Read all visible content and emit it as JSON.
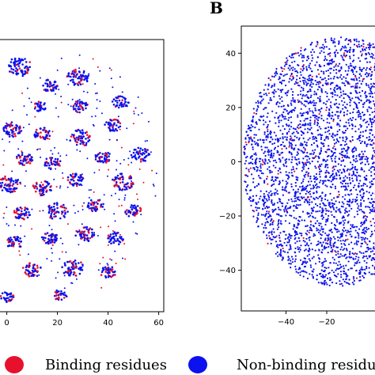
{
  "colors": {
    "binding": "#e8112d",
    "non_binding": "#0b12ee",
    "background": "#ffffff",
    "axes": "#000000"
  },
  "legend": {
    "placement": "bottom",
    "items": [
      {
        "label": "Binding residues",
        "color": "#e8112d"
      },
      {
        "label": "Non-binding residue",
        "color": "#0b12ee"
      }
    ]
  },
  "chart_data": [
    {
      "type": "scatter",
      "panel_letter": "",
      "title": "",
      "xlabel": "",
      "ylabel": "",
      "grid": false,
      "xlim": [
        -3,
        62
      ],
      "ylim": [
        -65,
        65
      ],
      "x_ticks": [
        0,
        20,
        40,
        60
      ],
      "x_tick_labels": [
        "0",
        "20",
        "40",
        "60"
      ],
      "y_ticks": [],
      "y_tick_labels": [],
      "series": [
        {
          "name": "Binding residues",
          "color": "#e8112d",
          "values_description": ""
        },
        {
          "name": "Non-binding residue",
          "color": "#0b12ee"
        }
      ],
      "clusters": [
        {
          "x": 5,
          "y": 52,
          "r": 4.5,
          "n": 70,
          "binding_share": 0.15
        },
        {
          "x": 17,
          "y": 43,
          "r": 3,
          "n": 40,
          "binding_share": 0.2
        },
        {
          "x": 28,
          "y": 47,
          "r": 4,
          "n": 60,
          "binding_share": 0.15
        },
        {
          "x": 45,
          "y": 35,
          "r": 3,
          "n": 40,
          "binding_share": 0.2
        },
        {
          "x": 13,
          "y": 33,
          "r": 2.5,
          "n": 30,
          "binding_share": 0.2
        },
        {
          "x": 29,
          "y": 33,
          "r": 3,
          "n": 40,
          "binding_share": 0.2
        },
        {
          "x": 2,
          "y": 22,
          "r": 3.5,
          "n": 50,
          "binding_share": 0.3
        },
        {
          "x": 14,
          "y": 20,
          "r": 3,
          "n": 45,
          "binding_share": 0.3
        },
        {
          "x": 29,
          "y": 18,
          "r": 4,
          "n": 55,
          "binding_share": 0.2
        },
        {
          "x": 42,
          "y": 24,
          "r": 3,
          "n": 40,
          "binding_share": 0.2
        },
        {
          "x": 53,
          "y": 10,
          "r": 3.5,
          "n": 50,
          "binding_share": 0.15
        },
        {
          "x": 7,
          "y": 8,
          "r": 3,
          "n": 45,
          "binding_share": 0.35
        },
        {
          "x": 18,
          "y": 6,
          "r": 3,
          "n": 40,
          "binding_share": 0.3
        },
        {
          "x": 38,
          "y": 9,
          "r": 3,
          "n": 45,
          "binding_share": 0.3
        },
        {
          "x": 1,
          "y": -4,
          "r": 4,
          "n": 60,
          "binding_share": 0.35
        },
        {
          "x": 14,
          "y": -6,
          "r": 3.5,
          "n": 55,
          "binding_share": 0.4
        },
        {
          "x": 27,
          "y": -2,
          "r": 3,
          "n": 45,
          "binding_share": 0.3
        },
        {
          "x": 46,
          "y": -3,
          "r": 4,
          "n": 60,
          "binding_share": 0.3
        },
        {
          "x": 6,
          "y": -18,
          "r": 3,
          "n": 45,
          "binding_share": 0.35
        },
        {
          "x": 20,
          "y": -17,
          "r": 4,
          "n": 55,
          "binding_share": 0.35
        },
        {
          "x": 35,
          "y": -14,
          "r": 3,
          "n": 40,
          "binding_share": 0.3
        },
        {
          "x": 50,
          "y": -17,
          "r": 3,
          "n": 40,
          "binding_share": 0.2
        },
        {
          "x": 3,
          "y": -32,
          "r": 3,
          "n": 45,
          "binding_share": 0.3
        },
        {
          "x": 17,
          "y": -30,
          "r": 3,
          "n": 45,
          "binding_share": 0.3
        },
        {
          "x": 31,
          "y": -28,
          "r": 3.5,
          "n": 50,
          "binding_share": 0.3
        },
        {
          "x": 43,
          "y": -30,
          "r": 3,
          "n": 40,
          "binding_share": 0.2
        },
        {
          "x": 10,
          "y": -45,
          "r": 3.5,
          "n": 50,
          "binding_share": 0.3
        },
        {
          "x": 26,
          "y": -44,
          "r": 4,
          "n": 60,
          "binding_share": 0.25
        },
        {
          "x": 40,
          "y": -46,
          "r": 3,
          "n": 40,
          "binding_share": 0.25
        },
        {
          "x": 0,
          "y": -58,
          "r": 2.5,
          "n": 30,
          "binding_share": 0.2
        },
        {
          "x": 21,
          "y": -57,
          "r": 2.5,
          "n": 30,
          "binding_share": 0.2
        }
      ],
      "scatter_points": 2000
    },
    {
      "type": "scatter",
      "panel_letter": "B",
      "title": "",
      "xlabel": "",
      "ylabel": "",
      "grid": false,
      "xlim": [
        -62,
        8
      ],
      "ylim": [
        -55,
        50
      ],
      "x_ticks": [
        -40,
        -20
      ],
      "x_tick_labels": [
        "−40",
        "−20"
      ],
      "y_ticks": [
        40,
        20,
        0,
        -20,
        -40
      ],
      "y_tick_labels": [
        "40",
        "20",
        "0",
        "−20",
        "−40"
      ],
      "series": [
        {
          "name": "Binding residues",
          "color": "#e8112d"
        },
        {
          "name": "Non-binding residue",
          "color": "#0b12ee"
        }
      ],
      "cloud": {
        "cx": -13,
        "cy": 0,
        "rx": 48,
        "ry": 46,
        "n": 3200,
        "binding_share": 0.04
      }
    }
  ]
}
